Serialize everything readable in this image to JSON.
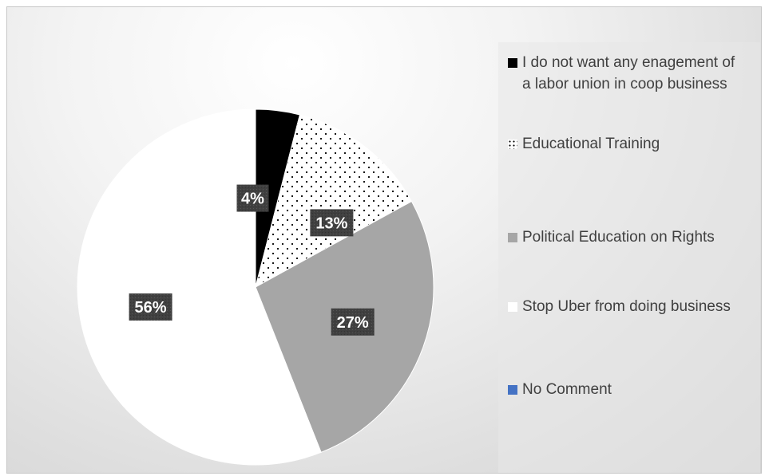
{
  "chart_data": {
    "type": "pie",
    "title": "",
    "legend_position": "right",
    "categories": [
      "I do not want any enagement of a labor union in coop business",
      "Educational Training",
      "Political Education on Rights",
      "Stop Uber from doing business",
      "No Comment"
    ],
    "values": [
      4,
      13,
      27,
      56,
      0
    ],
    "data_labels": [
      "4%",
      "13%",
      "27%",
      "56%",
      ""
    ],
    "colors": [
      "#000000",
      "#ffffff",
      "#a6a6a6",
      "#ffffff",
      "#4472c4"
    ],
    "patterns": [
      "solid",
      "dotted",
      "solid",
      "solid",
      "solid"
    ],
    "label_background": "#404040"
  }
}
